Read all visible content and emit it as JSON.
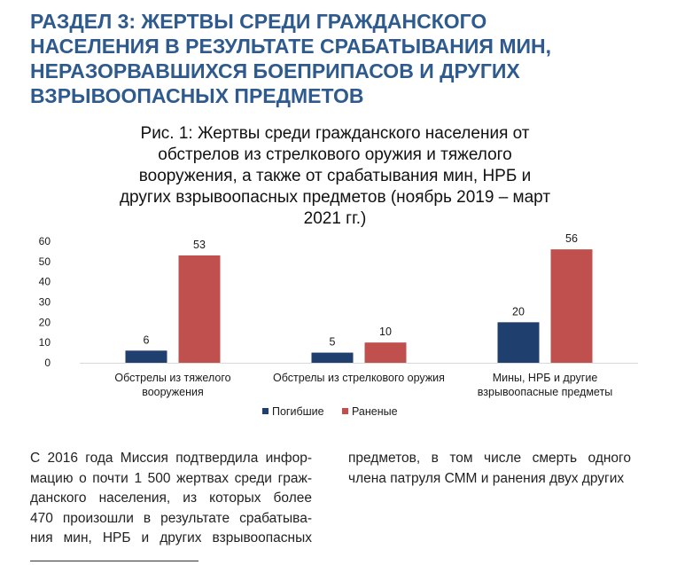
{
  "heading": {
    "lines": [
      "РАЗДЕЛ 3: ЖЕРТВЫ СРЕДИ ГРАЖДАНСКОГО",
      "НАСЕЛЕНИЯ В РЕЗУЛЬТАТЕ СРАБАТЫВАНИЯ МИН,",
      "НЕРАЗОРВАВШИХСЯ БОЕПРИПАСОВ И ДРУГИХ",
      "ВЗРЫВООПАСНЫХ ПРЕДМЕТОВ"
    ],
    "color": "#2e5a8e"
  },
  "chart_data": {
    "type": "bar",
    "title_lines": [
      "Рис. 1: Жертвы среди гражданского населения от",
      "обстрелов из стрелкового оружия и тяжелого",
      "вооружения, а также от срабатывания мин, НРБ и",
      "других взрывоопасных предметов (ноябрь 2019 – март",
      "2021 гг.)"
    ],
    "categories": [
      [
        "Обстрелы из тяжелого",
        "вооружения"
      ],
      [
        "Обстрелы из стрелкового оружия"
      ],
      [
        "Мины, НРБ и другие",
        "взрывоопасные предметы"
      ]
    ],
    "series": [
      {
        "name": "Погибшие",
        "values": [
          6,
          5,
          20
        ],
        "color": "#1f3f6e"
      },
      {
        "name": "Раненые",
        "values": [
          53,
          10,
          56
        ],
        "color": "#c0504d"
      }
    ],
    "ylim": [
      0,
      60
    ],
    "yticks": [
      "0",
      "10",
      "20",
      "30",
      "40",
      "50",
      "60"
    ],
    "grid": false,
    "legend_position": "bottom"
  },
  "body": {
    "left_lines": [
      "С 2016 года Миссия подтвердила инфор-",
      "мацию о почти 1 500 жертвах среди граж-",
      "данского населения, из которых более",
      "470 произошли в результате срабатыва-",
      "ния мин, НРБ и других взрывоопасных"
    ],
    "right_lines": [
      "предметов, в том числе смерть одного",
      "члена патруля СММ и ранения двух других"
    ]
  }
}
